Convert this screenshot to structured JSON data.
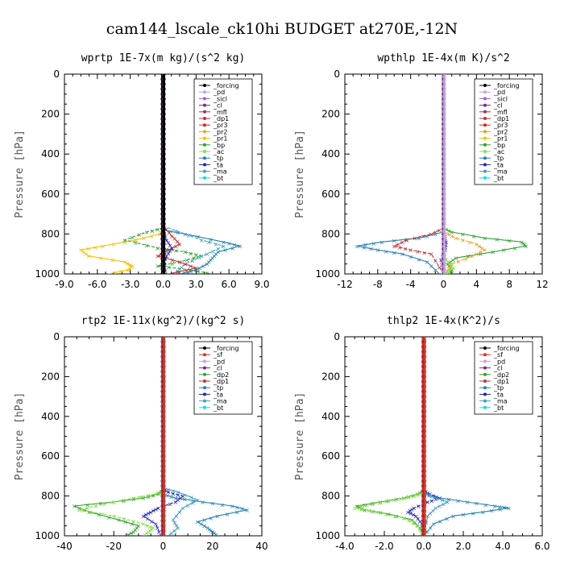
{
  "title": "cam144_lscale_ck10hi  BUDGET at270E,-12N",
  "colors": {
    "forcing": "#000000",
    "pd": "#c8a0e0",
    "sicl": "#9a60d0",
    "cl": "#7a2a8a",
    "mfl": "#a0305a",
    "dp1": "#c03030",
    "pr3": "#e02020",
    "pr2": "#f0a020",
    "pr1": "#f0c000",
    "bp": "#30a030",
    "ac": "#80e040",
    "tp": "#2080b0",
    "ta": "#2020c0",
    "ma": "#40a0c0",
    "bt": "#00e0f0",
    "sf": "#e03020",
    "dp2": "#30a030",
    "zero": "#e03020"
  },
  "chart_data": [
    {
      "type": "line",
      "title": "wprtp  1E-7x(m kg)/(s^2 kg)",
      "ylabel": "Pressure [hPa]",
      "xlim": [
        -9,
        9
      ],
      "ylim": [
        1000,
        0
      ],
      "xticks": [
        "-9.0",
        "-6.0",
        "-3.0",
        "0.0",
        "3.0",
        "6.0",
        "9.0"
      ],
      "yticks": [
        "0",
        "200",
        "400",
        "600",
        "800",
        "1000"
      ],
      "legend": [
        "_forcing",
        "_pd",
        "_sicl",
        "_cl",
        "_mfl",
        "_dp1",
        "_pr3",
        "_pr2",
        "_pr1",
        "_bp",
        "_ac",
        "_tp",
        "_ta",
        "_ma",
        "_bt"
      ],
      "series": [
        {
          "key": "pr1",
          "x": [
            0,
            -0.3,
            -2.5,
            -5.5,
            -7.5,
            -6.8,
            -3.5,
            -2.8,
            -3.2,
            -5.0
          ],
          "y": [
            770,
            800,
            830,
            860,
            880,
            910,
            940,
            960,
            980,
            1000
          ]
        },
        {
          "key": "bp",
          "x": [
            0,
            -1.5,
            -3.5,
            -0.5,
            2.0,
            3.5,
            1.5,
            -0.5,
            2.5,
            4.5
          ],
          "y": [
            770,
            790,
            830,
            870,
            890,
            910,
            940,
            960,
            980,
            1000
          ]
        },
        {
          "key": "tp",
          "x": [
            0,
            2.0,
            5.5,
            7.0,
            5.0,
            4.5,
            4.0,
            3.0,
            1.5
          ],
          "y": [
            780,
            800,
            840,
            860,
            890,
            920,
            950,
            980,
            1000
          ]
        },
        {
          "key": "ma",
          "x": [
            0,
            3.5,
            5.5,
            4.0,
            2.0,
            1.0
          ],
          "y": [
            760,
            830,
            860,
            900,
            950,
            1000
          ]
        },
        {
          "key": "dp1",
          "x": [
            0,
            0.8,
            1.5,
            0.5,
            -0.5,
            1.5,
            3.0,
            0.5
          ],
          "y": [
            760,
            810,
            850,
            880,
            910,
            940,
            970,
            1000
          ]
        },
        {
          "key": "ta",
          "x": [
            0,
            0.3,
            0.8,
            0.3,
            0.0,
            0.3
          ],
          "y": [
            780,
            830,
            870,
            910,
            950,
            1000
          ]
        },
        {
          "key": "forcing",
          "x": [
            0,
            0,
            0
          ],
          "y": [
            0,
            500,
            1000
          ],
          "markers": 40
        }
      ]
    },
    {
      "type": "line",
      "title": "wpthlp  1E-4x(m K)/s^2",
      "ylabel": "Pressure [hPa]",
      "xlim": [
        -12,
        12
      ],
      "ylim": [
        1000,
        0
      ],
      "xticks": [
        "-12",
        "-8",
        "-4",
        "0",
        "4",
        "8",
        "12"
      ],
      "yticks": [
        "0",
        "200",
        "400",
        "600",
        "800",
        "1000"
      ],
      "legend": [
        "_forcing",
        "_pd",
        "_sicl",
        "_cl",
        "_mfl",
        "_dp1",
        "_pr3",
        "_pr2",
        "_pr1",
        "_bp",
        "_ac",
        "_tp",
        "_ta",
        "_ma",
        "_bt"
      ],
      "series": [
        {
          "key": "bp",
          "x": [
            0,
            1.0,
            5.0,
            9.5,
            10.0,
            6.0,
            1.5,
            0.5,
            1.0,
            0.8
          ],
          "y": [
            770,
            790,
            820,
            840,
            860,
            890,
            920,
            950,
            980,
            1000
          ]
        },
        {
          "key": "pr2",
          "x": [
            0,
            1.5,
            4.0,
            5.0,
            3.5,
            1.0,
            0.2
          ],
          "y": [
            790,
            820,
            850,
            880,
            910,
            950,
            1000
          ]
        },
        {
          "key": "tp",
          "x": [
            0,
            -3.0,
            -7.5,
            -10.5,
            -8.0,
            -5.0,
            -2.0,
            -0.5
          ],
          "y": [
            790,
            820,
            840,
            860,
            880,
            900,
            940,
            1000
          ]
        },
        {
          "key": "dp1",
          "x": [
            0,
            -1.5,
            -4.5,
            -6.0,
            -4.0,
            -1.5,
            0.0
          ],
          "y": [
            770,
            800,
            830,
            860,
            880,
            900,
            1000
          ]
        },
        {
          "key": "ta",
          "x": [
            0,
            0.3,
            0.2,
            -0.3,
            0.0
          ],
          "y": [
            780,
            840,
            880,
            930,
            1000
          ]
        },
        {
          "key": "ac",
          "x": [
            0,
            0.0,
            0.5,
            1.2,
            0.5,
            0.2
          ],
          "y": [
            800,
            900,
            940,
            970,
            990,
            1000
          ]
        },
        {
          "key": "pd",
          "x": [
            0,
            0,
            0
          ],
          "y": [
            0,
            500,
            1000
          ],
          "markers": 40
        }
      ]
    },
    {
      "type": "line",
      "title": "rtp2  1E-11x(kg^2)/(kg^2 s)",
      "ylabel": "Pressure [hPa]",
      "xlim": [
        -40,
        40
      ],
      "ylim": [
        1000,
        0
      ],
      "xticks": [
        "-40",
        "-20",
        "0",
        "20",
        "40"
      ],
      "yticks": [
        "0",
        "200",
        "400",
        "600",
        "800",
        "1000"
      ],
      "legend": [
        "_forcing",
        "_sf",
        "_pd",
        "_cl",
        "_dp2",
        "_dp1",
        "_tp",
        "_ta",
        "_ma",
        "_bt"
      ],
      "series": [
        {
          "key": "dp2",
          "x": [
            0,
            -2,
            -8,
            -20,
            -36,
            -30,
            -18,
            -10,
            -12,
            -15
          ],
          "y": [
            770,
            790,
            810,
            830,
            850,
            880,
            920,
            950,
            980,
            1000
          ]
        },
        {
          "key": "ac",
          "x": [
            0,
            -3,
            -12,
            -24,
            -34,
            -20,
            -8,
            -4,
            -6,
            -8
          ],
          "y": [
            770,
            790,
            810,
            840,
            870,
            900,
            940,
            960,
            980,
            1000
          ]
        },
        {
          "key": "tp",
          "x": [
            0,
            5,
            16,
            28,
            34,
            22,
            14,
            18,
            20,
            22
          ],
          "y": [
            790,
            810,
            830,
            850,
            870,
            900,
            930,
            960,
            980,
            1000
          ]
        },
        {
          "key": "ta",
          "x": [
            0,
            2,
            8,
            5,
            -2,
            -5,
            -8,
            -3,
            -1
          ],
          "y": [
            760,
            780,
            800,
            830,
            860,
            880,
            900,
            940,
            1000
          ]
        },
        {
          "key": "ma",
          "x": [
            0,
            6,
            14,
            8,
            4,
            6,
            2
          ],
          "y": [
            760,
            780,
            820,
            860,
            920,
            960,
            1000
          ]
        },
        {
          "key": "zero",
          "x": [
            0,
            0,
            0
          ],
          "y": [
            0,
            500,
            1000
          ],
          "markers": 40
        }
      ]
    },
    {
      "type": "line",
      "title": "thlp2  1E-4x(K^2)/s",
      "ylabel": "Pressure [hPa]",
      "xlim": [
        -4,
        6
      ],
      "ylim": [
        1000,
        0
      ],
      "xticks": [
        "-4.0",
        "-2.0",
        "0.0",
        "2.0",
        "4.0",
        "6.0"
      ],
      "yticks": [
        "0",
        "200",
        "400",
        "600",
        "800",
        "1000"
      ],
      "legend": [
        "_forcing",
        "_sf",
        "_pd",
        "_cl",
        "_dp2",
        "_dp1",
        "_tp",
        "_ta",
        "_ma",
        "_bt"
      ],
      "series": [
        {
          "key": "dp2",
          "x": [
            0,
            -0.3,
            -1.0,
            -2.2,
            -3.4,
            -3.0,
            -1.8,
            -0.6,
            -0.2,
            0.0
          ],
          "y": [
            770,
            790,
            810,
            830,
            850,
            870,
            890,
            920,
            960,
            1000
          ]
        },
        {
          "key": "ac",
          "x": [
            0,
            -0.5,
            -1.5,
            -2.6,
            -3.5,
            -2.4,
            -1.0,
            -0.3,
            0.0
          ],
          "y": [
            780,
            800,
            820,
            840,
            860,
            880,
            910,
            950,
            1000
          ]
        },
        {
          "key": "tp",
          "x": [
            0,
            0.8,
            2.2,
            3.6,
            4.3,
            3.0,
            1.5,
            0.5,
            0.0
          ],
          "y": [
            790,
            810,
            830,
            850,
            860,
            880,
            900,
            940,
            1000
          ]
        },
        {
          "key": "ta",
          "x": [
            0,
            0.3,
            0.8,
            0.2,
            -0.5,
            -0.8,
            -0.4,
            -0.1,
            0.0
          ],
          "y": [
            770,
            790,
            810,
            830,
            860,
            880,
            900,
            940,
            1000
          ]
        },
        {
          "key": "ma",
          "x": [
            0,
            0.4,
            1.2,
            0.6,
            0.2,
            0.0
          ],
          "y": [
            780,
            800,
            830,
            860,
            900,
            1000
          ]
        },
        {
          "key": "zero",
          "x": [
            0,
            0,
            0
          ],
          "y": [
            0,
            500,
            1000
          ],
          "markers": 40
        }
      ]
    }
  ]
}
